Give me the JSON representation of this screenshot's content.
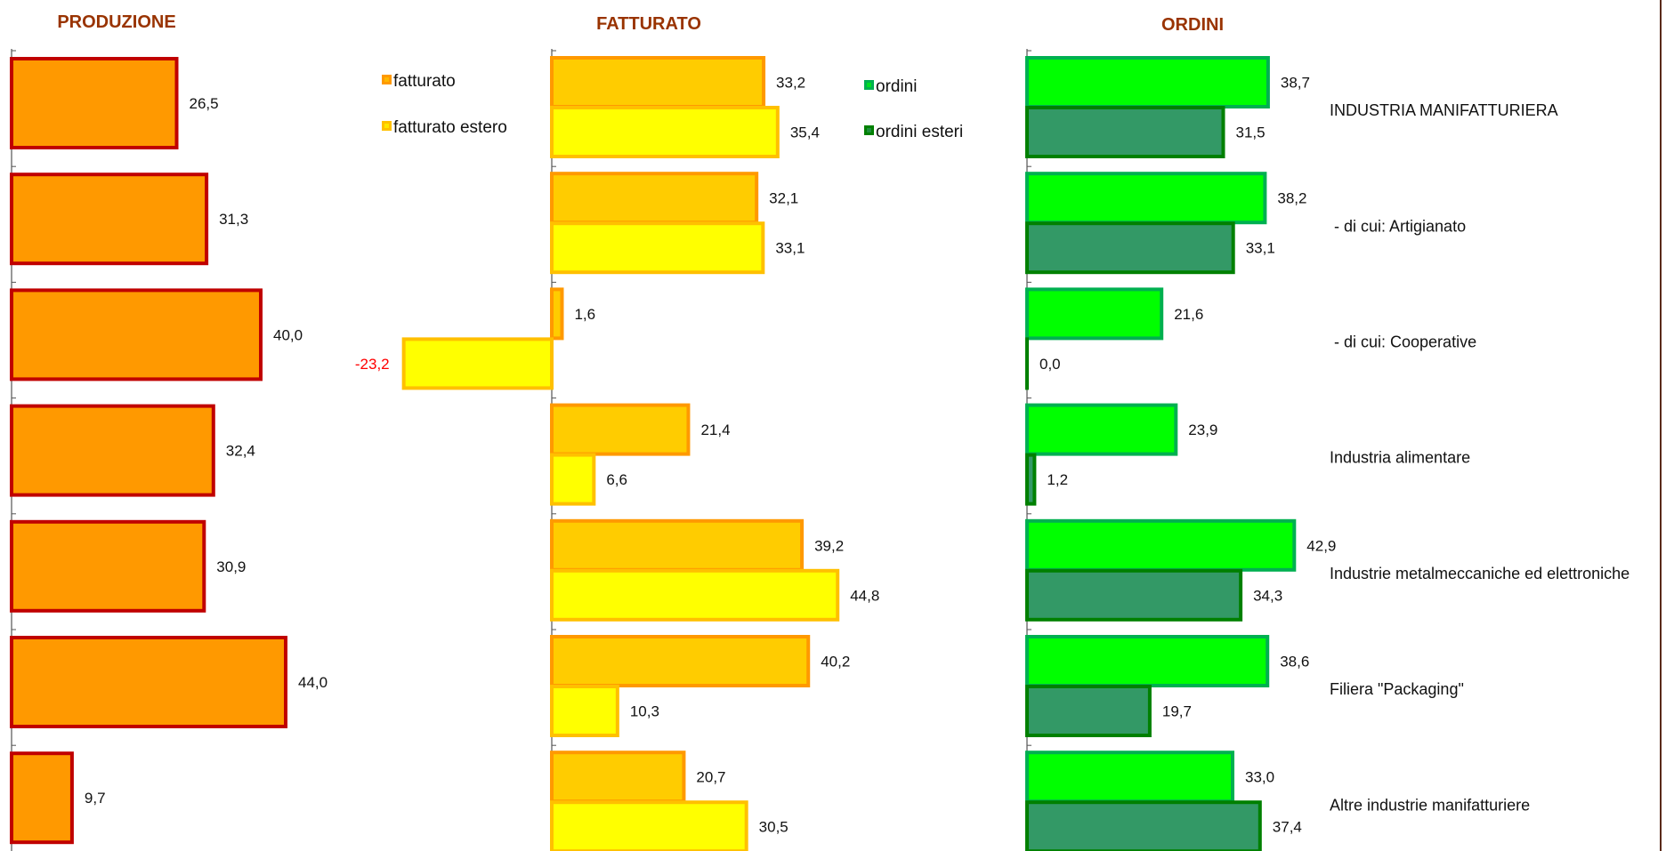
{
  "chart_data": {
    "type": "bar",
    "orientation": "horizontal",
    "categories": [
      "INDUSTRIA MANIFATTURIERA",
      " - di cui: Artigianato",
      " - di cui: Cooperative",
      "Industria alimentare",
      "Industrie metalmeccaniche ed elettroniche",
      "Filiera \"Packaging\"",
      "Altre industrie manifatturiere"
    ],
    "panels": [
      {
        "title": "PRODUZIONE",
        "xlim": [
          0,
          44
        ],
        "series": [
          {
            "values": [
              26.5,
              31.3,
              40.0,
              32.4,
              30.9,
              44.0,
              9.7
            ],
            "labels": [
              "26,5",
              "31,3",
              "40,0",
              "32,4",
              "30,9",
              "44,0",
              "9,7"
            ],
            "fill": "#FF9900",
            "stroke": "#C00000"
          }
        ]
      },
      {
        "title": "FATTURATO",
        "xlim": [
          -23.2,
          44.8
        ],
        "series": [
          {
            "name": "fatturato",
            "values": [
              33.2,
              32.1,
              1.6,
              21.4,
              39.2,
              40.2,
              20.7
            ],
            "labels": [
              "33,2",
              "32,1",
              "1,6",
              "21,4",
              "39,2",
              "40,2",
              "20,7"
            ],
            "fill": "#FFCC00",
            "stroke": "#FF9900"
          },
          {
            "name": "fatturato estero",
            "values": [
              35.4,
              33.1,
              -23.2,
              6.6,
              44.8,
              10.3,
              30.5
            ],
            "labels": [
              "35,4",
              "33,1",
              "-23,2",
              "6,6",
              "44,8",
              "10,3",
              "30,5"
            ],
            "fill": "#FFFF00",
            "stroke": "#FFC000"
          }
        ]
      },
      {
        "title": "ORDINI",
        "xlim": [
          0,
          42.9
        ],
        "series": [
          {
            "name": "ordini",
            "values": [
              38.7,
              38.2,
              21.6,
              23.9,
              42.9,
              38.6,
              33.0
            ],
            "labels": [
              "38,7",
              "38,2",
              "21,6",
              "23,9",
              "42,9",
              "38,6",
              "33,0"
            ],
            "fill": "#00FF00",
            "stroke": "#00B050"
          },
          {
            "name": "ordini esteri",
            "values": [
              31.5,
              33.1,
              0.0,
              1.2,
              34.3,
              19.7,
              37.4
            ],
            "labels": [
              "31,5",
              "33,1",
              "0,0",
              "1,2",
              "34,3",
              "19,7",
              "37,4"
            ],
            "fill": "#339966",
            "stroke": "#008000"
          }
        ]
      }
    ],
    "title_color": "#993300",
    "negative_label_color": "#FF0000",
    "legend": [
      {
        "panel": 1,
        "placement": "top-left of panel"
      },
      {
        "panel": 2,
        "placement": "top-left of panel"
      }
    ],
    "grid": false
  }
}
